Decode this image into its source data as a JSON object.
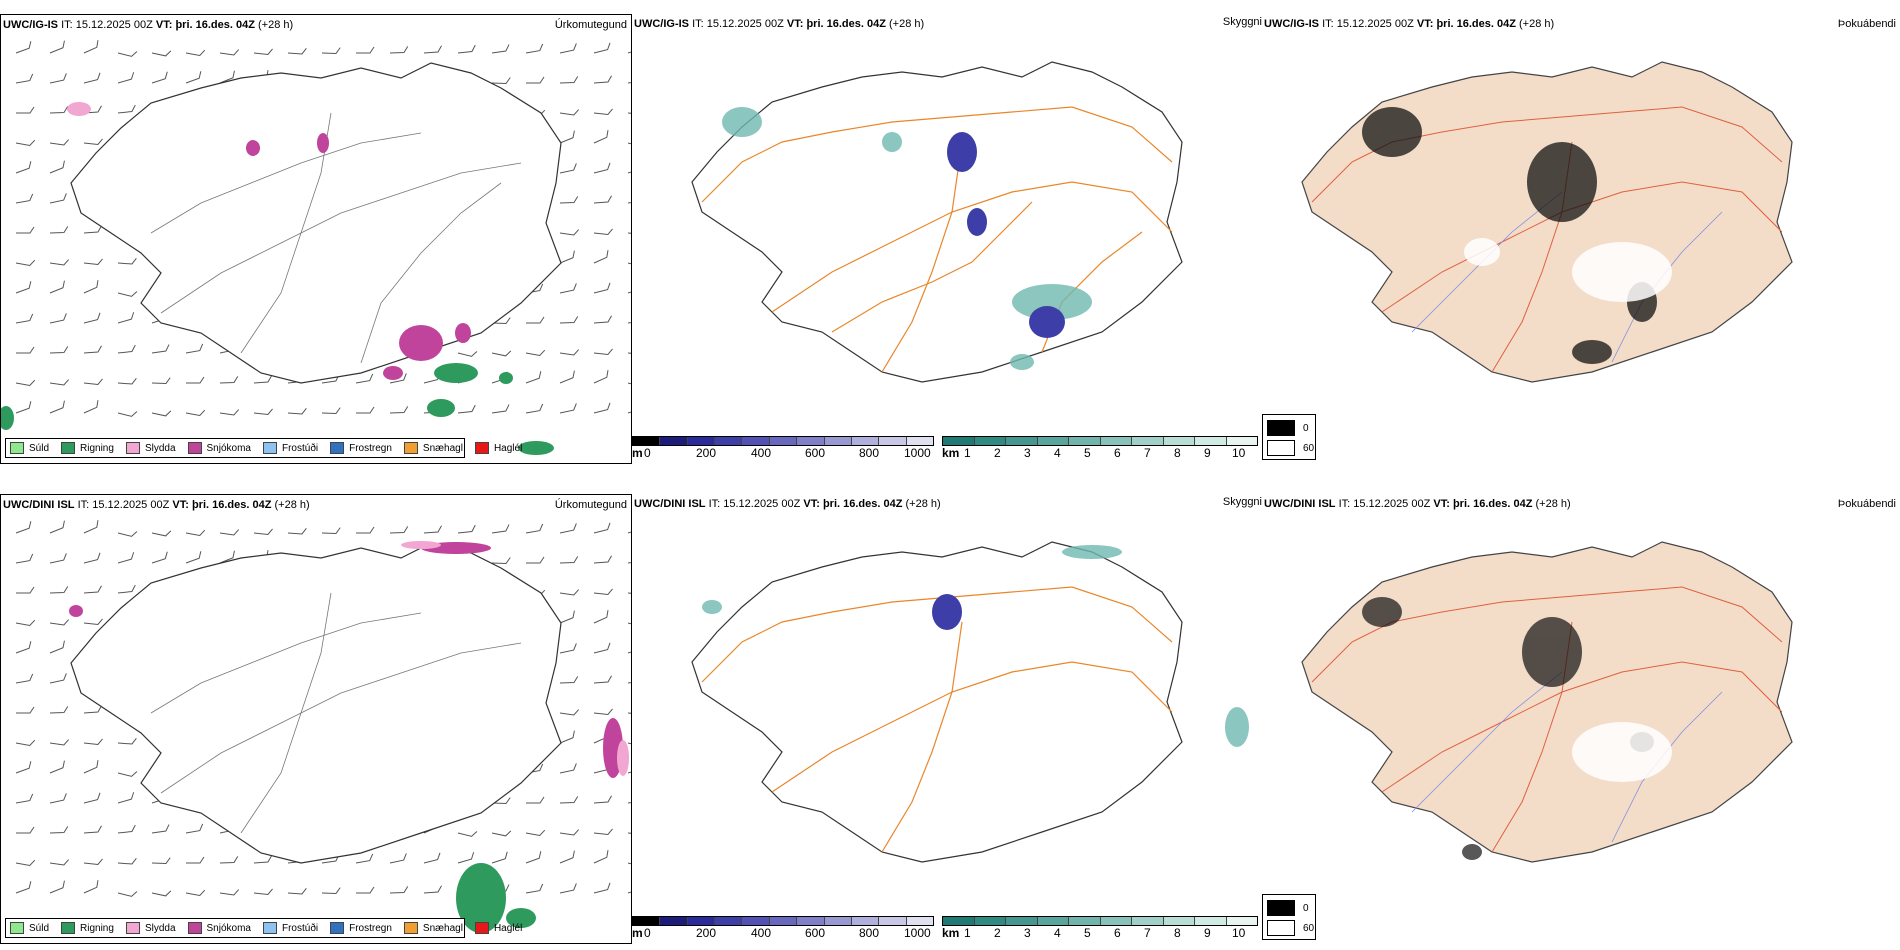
{
  "rows": [
    {
      "model": "UWC/IG-IS",
      "it_label": "IT:",
      "it_value": "15.12.2025 00Z",
      "vt_label": "VT:",
      "vt_value": "þri. 16.des. 04Z",
      "lead": "(+28 h)"
    },
    {
      "model": "UWC/DINI ISL",
      "it_label": "IT:",
      "it_value": "15.12.2025 00Z",
      "vt_label": "VT:",
      "vt_value": "þri. 16.des. 04Z",
      "lead": "(+28 h)"
    }
  ],
  "variables": {
    "precip_type": "Úrkomutegund",
    "visibility": "Skyggni",
    "cloud_cover": "Þokuábendi"
  },
  "precip_legend": [
    {
      "label": "Súld",
      "color": "#8ee88e"
    },
    {
      "label": "Rigning",
      "color": "#2e9a5e"
    },
    {
      "label": "Slydda",
      "color": "#f2a6d2"
    },
    {
      "label": "Snjókoma",
      "color": "#c0449c"
    },
    {
      "label": "Frostúði",
      "color": "#8ec2f0"
    },
    {
      "label": "Frostregn",
      "color": "#2e72c0"
    },
    {
      "label": "Snæhagl",
      "color": "#f0a030"
    },
    {
      "label": "Haglél",
      "color": "#e81818"
    }
  ],
  "height_bar": {
    "unit": "m",
    "ticks": [
      "0",
      "200",
      "400",
      "600",
      "800",
      "1000"
    ],
    "colors": [
      "#000000",
      "#1c1c7a",
      "#2a2a9a",
      "#3e3ea8",
      "#5252b4",
      "#6868be",
      "#8080c8",
      "#9898d2",
      "#b0b0dc",
      "#c8c8e6",
      "#e0e0f0"
    ]
  },
  "km_bar": {
    "unit": "km",
    "ticks": [
      "1",
      "2",
      "3",
      "4",
      "5",
      "6",
      "7",
      "8",
      "9",
      "10"
    ],
    "colors": [
      "#1e7a72",
      "#2f8a82",
      "#449890",
      "#5aa69e",
      "#70b4ac",
      "#88c2ba",
      "#a0d0c8",
      "#b8ded6",
      "#d0eae4",
      "#e8f4f0"
    ]
  },
  "cloud_legend": [
    {
      "label": "0",
      "color": "#000000"
    },
    {
      "label": "60",
      "color": "#ffffff"
    }
  ]
}
